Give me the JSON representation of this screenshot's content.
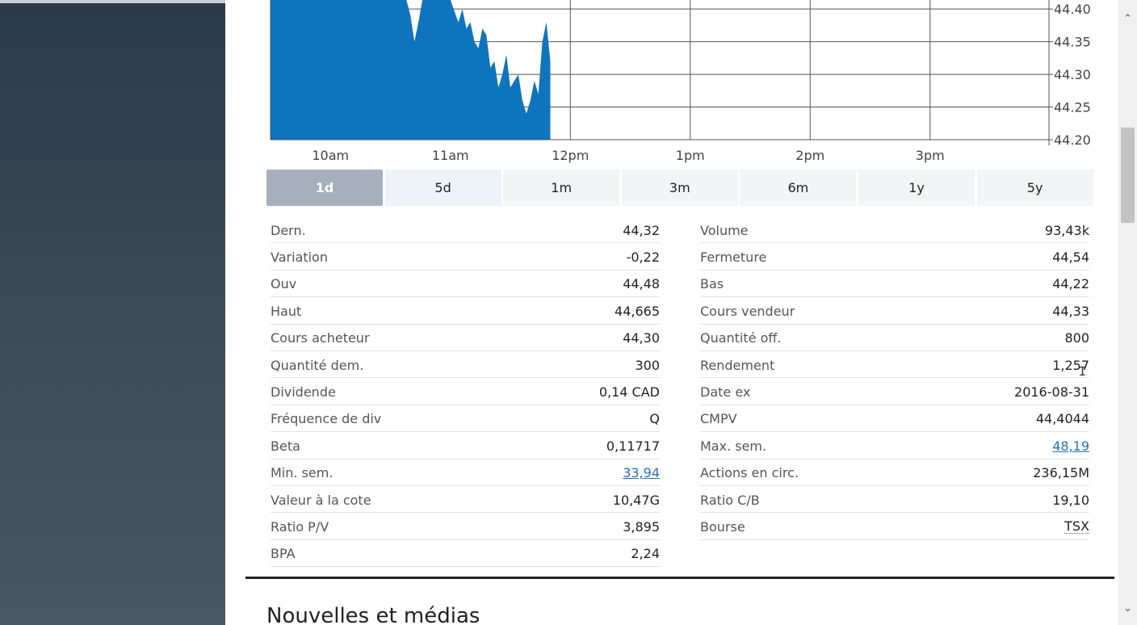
{
  "chart_data": {
    "type": "area",
    "x_ticks": [
      "10am",
      "11am",
      "12pm",
      "1pm",
      "2pm",
      "3pm"
    ],
    "y_ticks": [
      "44.40",
      "44.35",
      "44.30",
      "44.25",
      "44.20"
    ],
    "ylim": [
      44.2,
      44.42
    ],
    "grid": true,
    "color": "#0f74be",
    "series": [
      {
        "x": [
          "9:30",
          "9:40",
          "9:50",
          "10:00",
          "10:10",
          "10:20",
          "10:30",
          "10:36",
          "10:38",
          "10:40",
          "10:42",
          "10:44",
          "10:46",
          "10:50",
          "10:55",
          "11:00",
          "11:04",
          "11:06",
          "11:08",
          "11:10",
          "11:12",
          "11:14",
          "11:16",
          "11:18",
          "11:20",
          "11:22",
          "11:24",
          "11:26",
          "11:28",
          "11:30",
          "11:32",
          "11:34",
          "11:36",
          "11:38",
          "11:40",
          "11:42",
          "11:44",
          "11:46",
          "11:48",
          "11:50"
        ],
        "y": [
          44.43,
          44.43,
          44.43,
          44.43,
          44.43,
          44.43,
          44.43,
          44.43,
          44.42,
          44.39,
          44.35,
          44.38,
          44.43,
          44.42,
          44.43,
          44.42,
          44.38,
          44.4,
          44.37,
          44.38,
          44.35,
          44.34,
          44.37,
          44.36,
          44.31,
          44.32,
          44.28,
          44.3,
          44.33,
          44.28,
          44.29,
          44.3,
          44.26,
          44.24,
          44.26,
          44.29,
          44.27,
          44.35,
          44.38,
          44.32
        ]
      }
    ]
  },
  "range_tabs": [
    {
      "label": "1d",
      "state": "active"
    },
    {
      "label": "5d",
      "state": "hover"
    },
    {
      "label": "1m",
      "state": ""
    },
    {
      "label": "3m",
      "state": ""
    },
    {
      "label": "6m",
      "state": ""
    },
    {
      "label": "1y",
      "state": ""
    },
    {
      "label": "5y",
      "state": ""
    }
  ],
  "stats_left": [
    {
      "label": "Dern.",
      "value": "44,32"
    },
    {
      "label": "Variation",
      "value": "-0,22"
    },
    {
      "label": "Ouv",
      "value": "44,48"
    },
    {
      "label": "Haut",
      "value": "44,665"
    },
    {
      "label": "Cours acheteur",
      "value": "44,30"
    },
    {
      "label": "Quantité dem.",
      "value": "300"
    },
    {
      "label": "Dividende",
      "value": "0,14 CAD"
    },
    {
      "label": "Fréquence de div",
      "value": "Q"
    },
    {
      "label": "Beta",
      "value": "0,11717"
    },
    {
      "label": "Min. sem.",
      "value": "33,94",
      "style": "link"
    },
    {
      "label": "Valeur à la cote",
      "value": "10,47G"
    },
    {
      "label": "Ratio P/V",
      "value": "3,895"
    },
    {
      "label": "BPA",
      "value": "2,24"
    }
  ],
  "stats_right": [
    {
      "label": "Volume",
      "value": "93,43k"
    },
    {
      "label": "Fermeture",
      "value": "44,54"
    },
    {
      "label": "Bas",
      "value": "44,22"
    },
    {
      "label": "Cours vendeur",
      "value": "44,33"
    },
    {
      "label": "Quantité off.",
      "value": "800"
    },
    {
      "label": "Rendement",
      "value": "1,257"
    },
    {
      "label": "Date ex",
      "value": "2016-08-31"
    },
    {
      "label": "CMPV",
      "value": "44,4044"
    },
    {
      "label": "Max. sem.",
      "value": "48,19",
      "style": "link"
    },
    {
      "label": "Actions en circ.",
      "value": "236,15M"
    },
    {
      "label": "Ratio C/B",
      "value": "19,10"
    },
    {
      "label": "Bourse",
      "value": "TSX",
      "style": "dotted"
    }
  ],
  "news": {
    "heading": "Nouvelles et médias"
  },
  "scrollbar": {
    "up_icon": "chevron-up-icon",
    "down_icon": "chevron-down-icon",
    "up_glyph": "⌃",
    "down_glyph": "⌄"
  },
  "cursor_glyph": "I"
}
